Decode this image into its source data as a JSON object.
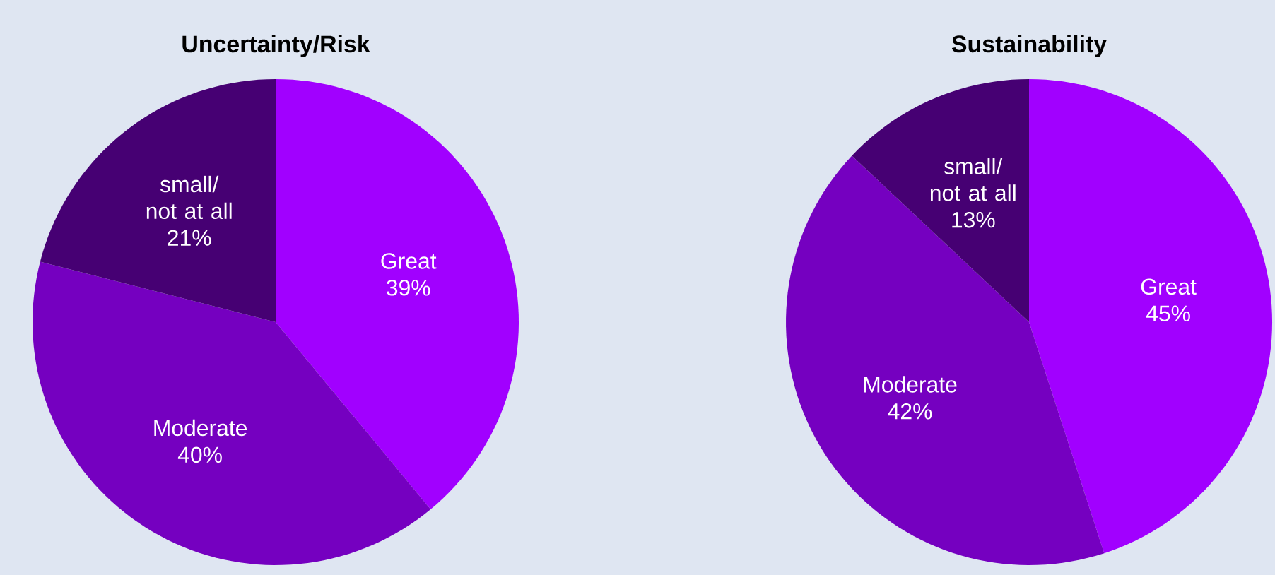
{
  "chart_data": [
    {
      "type": "pie",
      "title": "Uncertainty/Risk",
      "categories": [
        "Great",
        "Moderate",
        "small/ not at all"
      ],
      "values": [
        39,
        40,
        21
      ],
      "value_labels": [
        "39%",
        "40%",
        "21%"
      ],
      "colors": [
        "#a100ff",
        "#7500c0",
        "#460073"
      ]
    },
    {
      "type": "pie",
      "title": "Sustainability",
      "categories": [
        "Great",
        "Moderate",
        "small/ not at all"
      ],
      "values": [
        45,
        42,
        13
      ],
      "value_labels": [
        "45%",
        "42%",
        "13%"
      ],
      "colors": [
        "#a100ff",
        "#7500c0",
        "#460073"
      ]
    }
  ]
}
